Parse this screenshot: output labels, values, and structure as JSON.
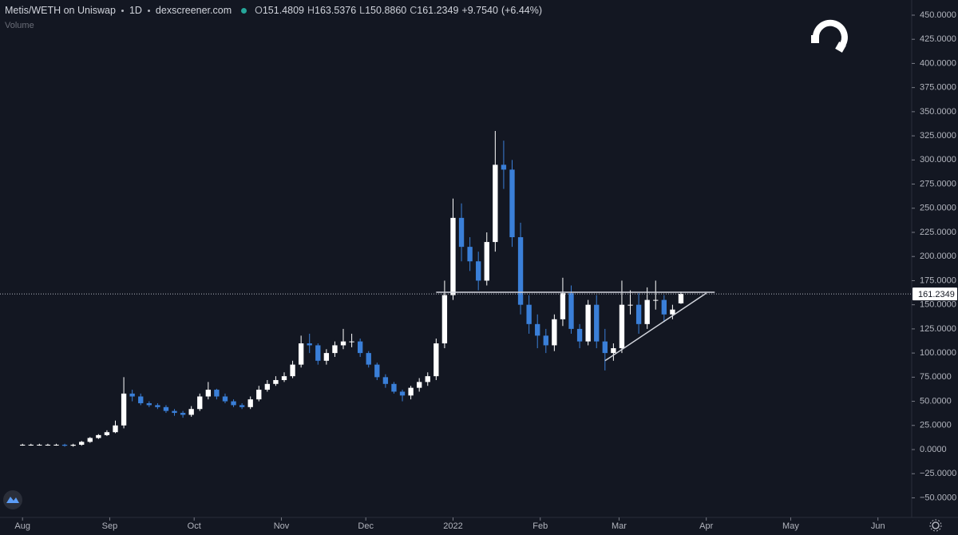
{
  "chart_data": {
    "type": "candlestick",
    "title": "Metis/WETH on Uniswap",
    "interval": "1D",
    "source": "dexscreener.com",
    "ohlc_labels": [
      "O",
      "H",
      "L",
      "C"
    ],
    "last_labels": [
      "151.4809",
      "163.5376",
      "150.8860",
      "161.2349"
    ],
    "change": "+9.7540",
    "change_pct": "(+6.44%)",
    "volume_label": "Volume",
    "up_color": "#ffffff",
    "down_color": "#3a7fd8",
    "grid": false,
    "x": [
      0,
      3,
      6,
      9,
      12,
      15,
      18,
      21,
      24,
      27,
      30,
      33,
      36,
      39,
      42,
      45,
      48,
      51,
      54,
      57,
      60,
      63,
      66,
      69,
      72,
      75,
      78,
      81,
      84,
      87,
      90,
      93,
      96,
      99,
      102,
      105,
      108,
      111,
      114,
      117,
      120,
      123,
      126,
      129,
      132,
      135,
      138,
      141,
      144,
      147,
      150,
      153,
      156,
      159,
      162,
      165,
      168,
      171,
      174,
      177,
      180,
      183,
      186,
      189,
      192,
      195,
      198,
      201,
      204,
      207,
      210,
      213,
      216,
      219,
      222,
      225,
      228,
      231,
      234
    ],
    "open": [
      5,
      5,
      5,
      5,
      5,
      5,
      4,
      5,
      8,
      12,
      15,
      18,
      25,
      58,
      55,
      48,
      46,
      44,
      40,
      38,
      36,
      42,
      55,
      62,
      55,
      50,
      46,
      44,
      52,
      62,
      68,
      72,
      76,
      88,
      110,
      108,
      92,
      100,
      108,
      112,
      112,
      100,
      88,
      75,
      68,
      60,
      56,
      64,
      70,
      76,
      110,
      160,
      240,
      210,
      195,
      175,
      215,
      295,
      290,
      220,
      150,
      130,
      118,
      108,
      135,
      162,
      125,
      112,
      150,
      112,
      100,
      105,
      150,
      150,
      130,
      155,
      155,
      140,
      151.4809
    ],
    "high": [
      6,
      6,
      6,
      6,
      6,
      6,
      6,
      9,
      13,
      16,
      20,
      30,
      75,
      62,
      58,
      50,
      48,
      46,
      42,
      40,
      45,
      58,
      70,
      63,
      58,
      52,
      48,
      55,
      66,
      72,
      76,
      80,
      92,
      118,
      120,
      110,
      104,
      112,
      125,
      120,
      115,
      102,
      90,
      78,
      70,
      62,
      66,
      74,
      80,
      115,
      175,
      260,
      255,
      220,
      205,
      225,
      330,
      320,
      300,
      235,
      160,
      140,
      125,
      140,
      178,
      170,
      130,
      155,
      160,
      125,
      110,
      175,
      165,
      162,
      168,
      175,
      160,
      150,
      163.5376
    ],
    "low": [
      4,
      4,
      4,
      4,
      4,
      3,
      3,
      4,
      7,
      11,
      14,
      17,
      22,
      50,
      46,
      44,
      42,
      38,
      35,
      33,
      34,
      40,
      52,
      52,
      48,
      44,
      42,
      42,
      50,
      60,
      66,
      70,
      74,
      85,
      100,
      88,
      88,
      96,
      104,
      106,
      96,
      85,
      72,
      64,
      58,
      50,
      52,
      60,
      66,
      72,
      105,
      155,
      195,
      185,
      165,
      170,
      205,
      270,
      210,
      140,
      120,
      105,
      100,
      102,
      128,
      120,
      105,
      108,
      105,
      82,
      92,
      100,
      140,
      120,
      125,
      145,
      132,
      135,
      150.886
    ],
    "close": [
      5,
      5,
      5,
      5,
      5,
      4,
      5,
      8,
      12,
      15,
      18,
      25,
      58,
      55,
      48,
      46,
      44,
      40,
      38,
      36,
      42,
      55,
      62,
      55,
      50,
      46,
      44,
      52,
      62,
      68,
      72,
      76,
      88,
      110,
      108,
      92,
      100,
      108,
      112,
      112,
      100,
      88,
      75,
      68,
      60,
      56,
      64,
      70,
      76,
      110,
      160,
      240,
      210,
      195,
      175,
      215,
      295,
      290,
      220,
      150,
      130,
      118,
      108,
      135,
      162,
      125,
      112,
      150,
      112,
      100,
      105,
      150,
      150,
      130,
      155,
      155,
      140,
      145,
      161.2349
    ],
    "lines": [
      {
        "x": [
          147,
          246
        ],
        "y": [
          163,
          163
        ]
      },
      {
        "x": [
          207,
          243
        ],
        "y": [
          92,
          162
        ]
      }
    ],
    "xlim": [
      -8,
      316
    ],
    "xticks": [
      {
        "value": 0,
        "label": "Aug"
      },
      {
        "value": 31,
        "label": "Sep"
      },
      {
        "value": 61,
        "label": "Oct"
      },
      {
        "value": 92,
        "label": "Nov"
      },
      {
        "value": 122,
        "label": "Dec"
      },
      {
        "value": 153,
        "label": "2022"
      },
      {
        "value": 184,
        "label": "Feb"
      },
      {
        "value": 212,
        "label": "Mar"
      },
      {
        "value": 243,
        "label": "Apr"
      },
      {
        "value": 273,
        "label": "May"
      },
      {
        "value": 304,
        "label": "Jun"
      }
    ],
    "ylim": [
      -70.3,
      465.7
    ],
    "yticks": [
      {
        "value": -50,
        "label": "−50.0000"
      },
      {
        "value": -25,
        "label": "−25.0000"
      },
      {
        "value": 0,
        "label": "0.0000"
      },
      {
        "value": 25,
        "label": "25.0000"
      },
      {
        "value": 50,
        "label": "50.0000"
      },
      {
        "value": 75,
        "label": "75.0000"
      },
      {
        "value": 100,
        "label": "100.0000"
      },
      {
        "value": 125,
        "label": "125.0000"
      },
      {
        "value": 150,
        "label": "150.0000"
      },
      {
        "value": 175,
        "label": "175.0000"
      },
      {
        "value": 200,
        "label": "200.0000"
      },
      {
        "value": 225,
        "label": "225.0000"
      },
      {
        "value": 250,
        "label": "250.0000"
      },
      {
        "value": 275,
        "label": "275.0000"
      },
      {
        "value": 300,
        "label": "300.0000"
      },
      {
        "value": 325,
        "label": "325.0000"
      },
      {
        "value": 350,
        "label": "350.0000"
      },
      {
        "value": 375,
        "label": "375.0000"
      },
      {
        "value": 400,
        "label": "400.0000"
      },
      {
        "value": 425,
        "label": "425.0000"
      },
      {
        "value": 450,
        "label": "450.0000"
      }
    ]
  }
}
